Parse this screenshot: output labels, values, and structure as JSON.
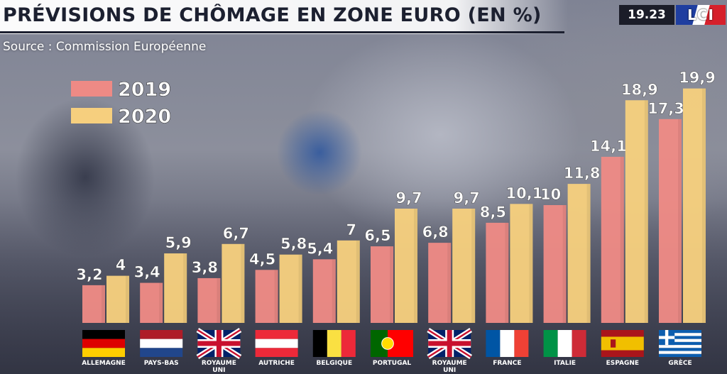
{
  "header": {
    "title": "PRÉVISIONS DE CHÔMAGE EN ZONE EURO (EN %)",
    "source": "Source : Commission Européenne"
  },
  "broadcast": {
    "time": "19.23",
    "logo": "LCI"
  },
  "chart_data": {
    "type": "bar",
    "title": "PRÉVISIONS DE CHÔMAGE EN ZONE EURO (EN %)",
    "subtitle": "Source : Commission Européenne",
    "categories": [
      "ALLEMAGNE",
      "PAYS-BAS",
      "ROYAUME UNI",
      "AUTRICHE",
      "BELGIQUE",
      "PORTUGAL",
      "ROYAUME UNI",
      "FRANCE",
      "ITALIE",
      "ESPAGNE",
      "GRÈCE"
    ],
    "flags": [
      "germany-flag",
      "netherlands-flag",
      "uk-flag",
      "austria-flag",
      "belgium-flag",
      "portugal-flag",
      "uk-flag",
      "france-flag",
      "italy-flag",
      "spain-flag",
      "greece-flag"
    ],
    "series": [
      {
        "name": "2019",
        "color": "#ee8a85",
        "values": [
          3.2,
          3.4,
          3.8,
          4.5,
          5.4,
          6.5,
          6.8,
          8.5,
          10,
          14.1,
          17.3
        ],
        "labels": [
          "3,2",
          "3,4",
          "3,8",
          "4,5",
          "5,4",
          "6,5",
          "6,8",
          "8,5",
          "10",
          "14,1",
          "17,3"
        ]
      },
      {
        "name": "2020",
        "color": "#f6cf7e",
        "values": [
          4,
          5.9,
          6.7,
          5.8,
          7,
          9.7,
          9.7,
          10.1,
          11.8,
          18.9,
          19.9
        ],
        "labels": [
          "4",
          "5,9",
          "6,7",
          "5,8",
          "7",
          "9,7",
          "9,7",
          "10,1",
          "11,8",
          "18,9",
          "19,9"
        ]
      }
    ],
    "ylim": [
      0,
      20
    ],
    "legend": "top-left",
    "grid": false,
    "xlabel": "",
    "ylabel": ""
  }
}
